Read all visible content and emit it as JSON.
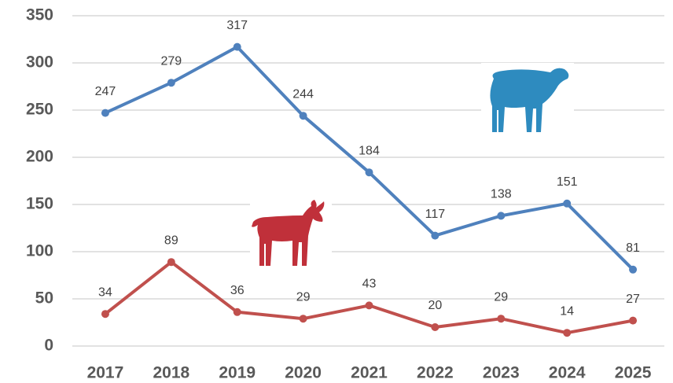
{
  "chart_data": {
    "type": "line",
    "categories": [
      "2017",
      "2018",
      "2019",
      "2020",
      "2021",
      "2022",
      "2023",
      "2024",
      "2025"
    ],
    "series": [
      {
        "color": "#4f81bd",
        "values": [
          247,
          279,
          317,
          244,
          184,
          117,
          138,
          151,
          81
        ]
      },
      {
        "color": "#c0504d",
        "values": [
          34,
          89,
          36,
          29,
          43,
          20,
          29,
          14,
          27
        ]
      }
    ],
    "ylim": [
      0,
      350
    ],
    "yticks": [
      0,
      50,
      100,
      150,
      200,
      250,
      300,
      350
    ],
    "grid": true
  }
}
